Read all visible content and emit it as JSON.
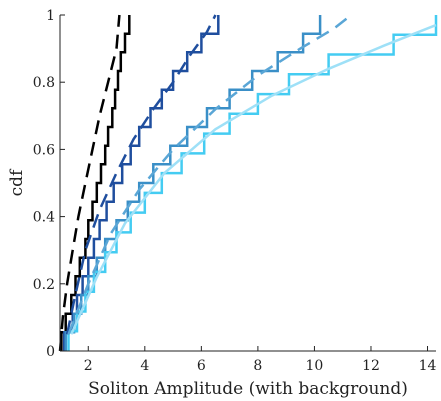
{
  "chart_data": {
    "type": "line",
    "title": "",
    "xlabel": "Soliton Amplitude (with background)",
    "ylabel": "cdf",
    "xlim": [
      1,
      14.3
    ],
    "ylim": [
      0,
      1
    ],
    "xticks": [
      {
        "value": 2,
        "label": "2"
      },
      {
        "value": 4,
        "label": "4"
      },
      {
        "value": 6,
        "label": "6"
      },
      {
        "value": 8,
        "label": "8"
      },
      {
        "value": 10,
        "label": "10"
      },
      {
        "value": 12,
        "label": "12"
      },
      {
        "value": 14,
        "label": "14"
      }
    ],
    "yticks": [
      {
        "value": 0,
        "label": "0"
      },
      {
        "value": 0.2,
        "label": "0.2"
      },
      {
        "value": 0.4,
        "label": "0.4"
      },
      {
        "value": 0.6,
        "label": "0.6"
      },
      {
        "value": 0.8,
        "label": "0.8"
      },
      {
        "value": 1,
        "label": "1"
      }
    ],
    "grid": false,
    "series": [
      {
        "kind": "empirical-step",
        "color": "#000000",
        "amplitudes": [
          1.05,
          1.2,
          1.4,
          1.55,
          1.7,
          1.9,
          2.0,
          2.15,
          2.3,
          2.45,
          2.6,
          2.7,
          2.85,
          2.95,
          3.05,
          3.15,
          3.3,
          3.45
        ]
      },
      {
        "kind": "empirical-step",
        "color": "#1f4e9e",
        "amplitudes": [
          1.15,
          1.45,
          1.6,
          1.8,
          2.0,
          2.2,
          2.4,
          2.65,
          2.9,
          3.2,
          3.5,
          3.8,
          4.2,
          4.6,
          5.0,
          5.5,
          6.0,
          6.6
        ]
      },
      {
        "kind": "empirical-step",
        "color": "#3a8fc7",
        "amplitudes": [
          1.2,
          1.5,
          1.75,
          2.0,
          2.3,
          2.6,
          3.0,
          3.4,
          3.8,
          4.3,
          4.9,
          5.5,
          6.2,
          7.0,
          7.8,
          8.7,
          9.6,
          10.2
        ]
      },
      {
        "kind": "empirical-step",
        "color": "#44ccf2",
        "amplitudes": [
          1.3,
          1.6,
          1.9,
          2.2,
          2.6,
          3.0,
          3.5,
          4.0,
          4.6,
          5.3,
          6.1,
          7.0,
          8.0,
          9.1,
          10.5,
          12.8,
          14.3
        ]
      },
      {
        "kind": "fitted-curve",
        "color": "#000000",
        "dash": true,
        "points": [
          [
            1.0,
            0.0
          ],
          [
            1.1,
            0.1
          ],
          [
            1.25,
            0.2
          ],
          [
            1.45,
            0.3
          ],
          [
            1.65,
            0.4
          ],
          [
            1.9,
            0.5
          ],
          [
            2.15,
            0.6
          ],
          [
            2.4,
            0.7
          ],
          [
            2.7,
            0.8
          ],
          [
            3.0,
            0.9
          ],
          [
            3.1,
            1.0
          ]
        ]
      },
      {
        "kind": "fitted-curve",
        "color": "#1f4e9e",
        "dash": true,
        "points": [
          [
            1.25,
            0.05
          ],
          [
            1.5,
            0.15
          ],
          [
            1.9,
            0.3
          ],
          [
            2.4,
            0.42
          ],
          [
            3.0,
            0.53
          ],
          [
            3.6,
            0.63
          ],
          [
            4.3,
            0.72
          ],
          [
            5.0,
            0.8
          ],
          [
            5.6,
            0.88
          ],
          [
            6.2,
            0.95
          ],
          [
            6.5,
            1.0
          ]
        ]
      },
      {
        "kind": "fitted-curve",
        "color": "#5aa6d6",
        "dash": true,
        "points": [
          [
            1.3,
            0.05
          ],
          [
            2.0,
            0.2
          ],
          [
            2.8,
            0.35
          ],
          [
            3.8,
            0.48
          ],
          [
            5.0,
            0.6
          ],
          [
            6.5,
            0.72
          ],
          [
            8.0,
            0.82
          ],
          [
            9.5,
            0.9
          ],
          [
            10.7,
            0.96
          ],
          [
            11.3,
            1.0
          ]
        ]
      },
      {
        "kind": "fitted-curve",
        "color": "#9ee0f7",
        "dash": false,
        "points": [
          [
            1.4,
            0.05
          ],
          [
            2.3,
            0.22
          ],
          [
            3.3,
            0.38
          ],
          [
            4.7,
            0.53
          ],
          [
            6.5,
            0.66
          ],
          [
            8.5,
            0.76
          ],
          [
            10.5,
            0.84
          ],
          [
            12.5,
            0.91
          ],
          [
            14.3,
            0.97
          ]
        ]
      }
    ]
  }
}
